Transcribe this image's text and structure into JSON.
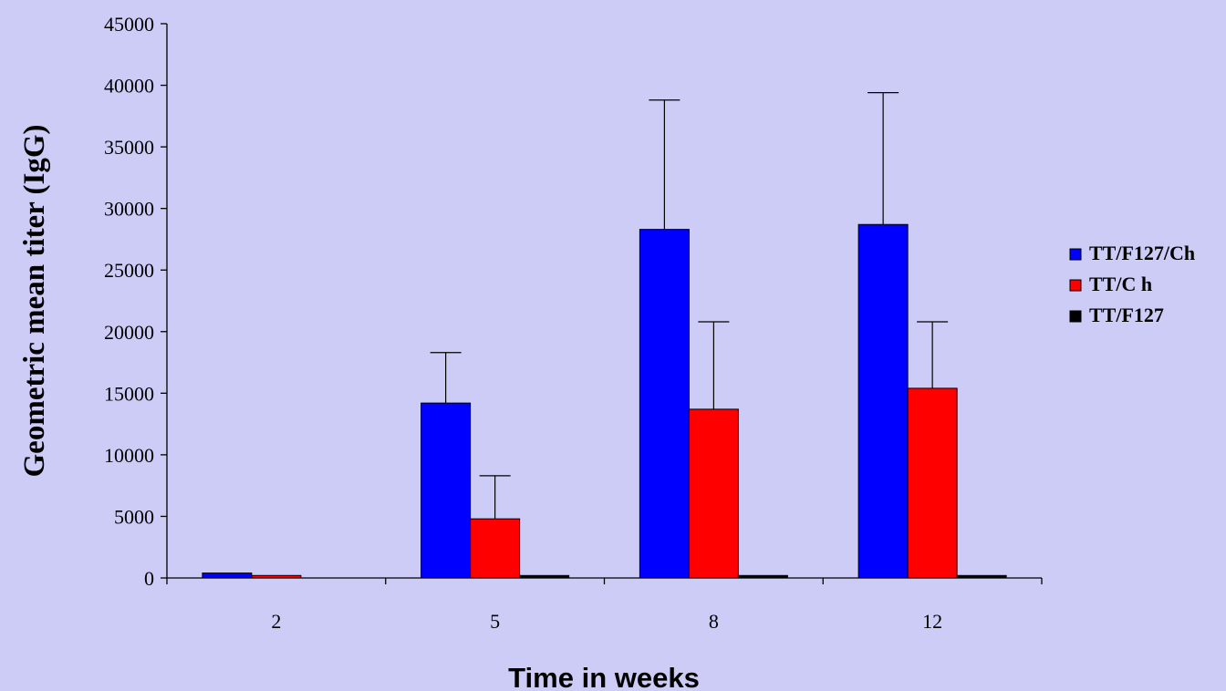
{
  "chart_data": {
    "type": "bar",
    "title": "",
    "xlabel": "Time in weeks",
    "ylabel": "Geometric mean titer (IgG)",
    "categories": [
      "2",
      "5",
      "8",
      "12"
    ],
    "ylim": [
      0,
      45000
    ],
    "yticks": [
      0,
      5000,
      10000,
      15000,
      20000,
      25000,
      30000,
      35000,
      40000,
      45000
    ],
    "ytick_labels": [
      "0",
      "5000",
      "10000",
      "15000",
      "20000",
      "25000",
      "30000",
      "35000",
      "40000",
      "45000"
    ],
    "grid": false,
    "legend_position": "right",
    "series": [
      {
        "name": "TT/F127/Ch",
        "color": "#0000ff",
        "values": [
          400,
          14200,
          28300,
          28700
        ],
        "error_upper": [
          null,
          18300,
          38800,
          39400
        ]
      },
      {
        "name": "TT/C h",
        "color": "#ff0000",
        "values": [
          200,
          4800,
          13700,
          15400
        ],
        "error_upper": [
          null,
          8300,
          20800,
          20800
        ]
      },
      {
        "name": "TT/F127",
        "color": "#000000",
        "values": [
          0,
          200,
          200,
          200
        ],
        "error_upper": [
          null,
          null,
          null,
          null
        ]
      }
    ]
  }
}
